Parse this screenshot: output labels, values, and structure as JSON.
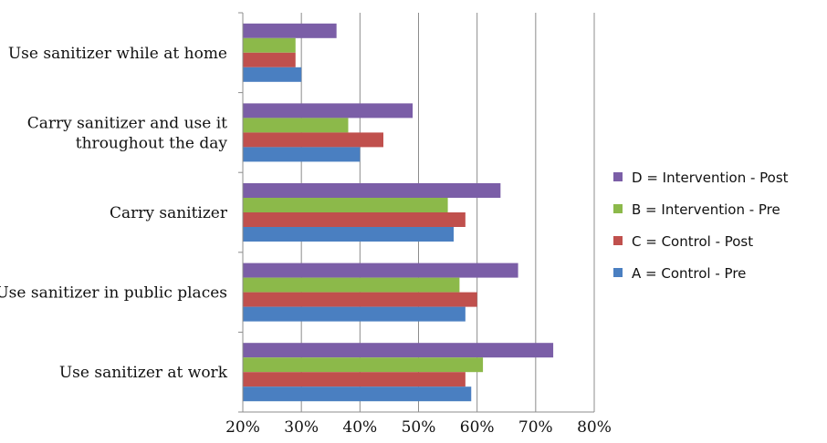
{
  "chart_data": {
    "type": "bar",
    "orientation": "horizontal",
    "categories": [
      "Use sanitizer while at home",
      [
        "Carry sanitizer and use it",
        "throughout the day"
      ],
      "Carry sanitizer",
      "Use sanitizer in public places",
      "Use sanitizer at work"
    ],
    "series": [
      {
        "name": "D = Intervention - Post",
        "color": "#7b5ea7",
        "values": [
          36,
          49,
          64,
          67,
          73
        ]
      },
      {
        "name": "B = Intervention - Pre",
        "color": "#8cb94a",
        "values": [
          29,
          38,
          55,
          57,
          61
        ]
      },
      {
        "name": "C = Control - Post",
        "color": "#c0504d",
        "values": [
          29,
          44,
          58,
          60,
          58
        ]
      },
      {
        "name": "A = Control - Pre",
        "color": "#4a7fc1",
        "values": [
          30,
          40,
          56,
          58,
          59
        ]
      }
    ],
    "legend_order": [
      "D = Intervention - Post",
      "B = Intervention - Pre",
      "C = Control - Post",
      "A = Control - Pre"
    ],
    "xlim": [
      20,
      80
    ],
    "xticks": [
      "20%",
      "30%",
      "40%",
      "50%",
      "60%",
      "70%",
      "80%"
    ],
    "grid": "vertical",
    "legend_position": "right"
  }
}
